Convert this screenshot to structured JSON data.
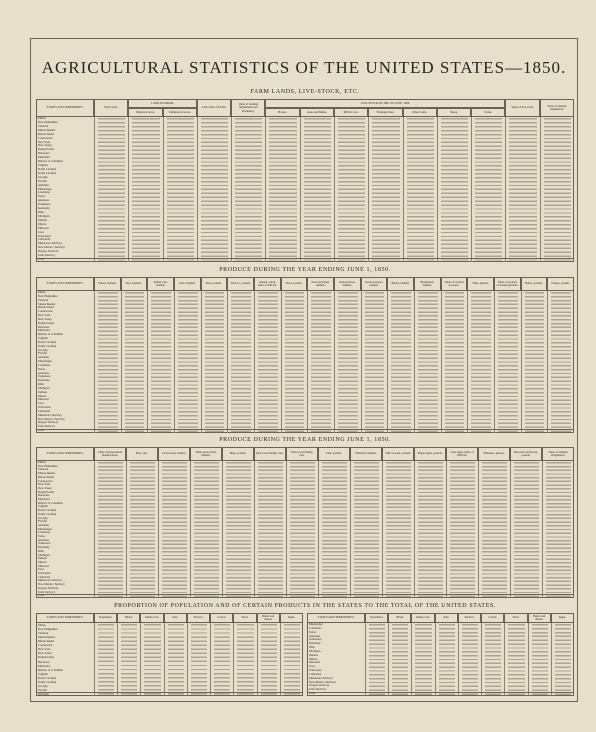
{
  "header": {
    "title": "AGRICULTURAL STATISTICS OF THE UNITED STATES—1850."
  },
  "states": [
    "Maine",
    "New Hampshire",
    "Vermont",
    "Massachusetts",
    "Rhode Island",
    "Connecticut",
    "New York",
    "New Jersey",
    "Pennsylvania",
    "Delaware",
    "Maryland",
    "District of Columbia",
    "Virginia",
    "North Carolina",
    "South Carolina",
    "Georgia",
    "Florida",
    "Alabama",
    "Mississippi",
    "Louisiana",
    "Texas",
    "Arkansas",
    "Tennessee",
    "Kentucky",
    "Ohio",
    "Michigan",
    "Indiana",
    "Illinois",
    "Missouri",
    "Iowa",
    "Wisconsin",
    "California",
    "Minnesota Territory",
    "New Mexico Territory",
    "Oregon Territory",
    "Utah Territory"
  ],
  "total": "Total",
  "first_column": "STATES AND TERRITORIES.",
  "tables": [
    {
      "heading": "FARM LANDS, LIVE-STOCK, ETC.",
      "columns": [
        "Farm acres.",
        "Improved acres.",
        "Unimproved acres.",
        "Cash value of Farms.",
        "Value of farming implements and machinery.",
        "Horses.",
        "Asses and Mules.",
        "Milch Cows.",
        "Working Oxen.",
        "Other Cattle.",
        "Sheep.",
        "Swine.",
        "Value of live-stock.",
        "Value of animals slaughtered."
      ],
      "groups": [
        {
          "label": "LAND IN FARMS.",
          "from": 1,
          "to": 2
        },
        {
          "label": "LIVE-STOCK ON THE 1ST JUNE, 1850.",
          "from": 5,
          "to": 11
        }
      ]
    },
    {
      "heading": "PRODUCE DURING THE YEAR ENDING JUNE 1, 1850.",
      "columns": [
        "Wheat, bushels.",
        "Rye, bushels.",
        "Indian corn, bushels.",
        "Oats, bushels.",
        "Rice, pounds.",
        "Tobacco, pounds.",
        "Ginned cotton, bales of 400 lbs.",
        "Wool, pounds.",
        "Peas and beans, bushels.",
        "Irish potatoes, bushels.",
        "Sweet potatoes, bushels.",
        "Barley, bushels.",
        "Buckwheat, bushels.",
        "Value of orchard products.",
        "Wine, gallons.",
        "Value of produce of market gardens.",
        "Butter, pounds.",
        "Cheese, pounds."
      ],
      "groups": []
    },
    {
      "heading": "PRODUCE DURING THE YEAR ENDING JUNE 1, 1850.",
      "columns": [
        "Value of home-made manufactures.",
        "Hay, tons.",
        "Clover seed, bushels.",
        "Other grass seeds, bushels.",
        "Hops, pounds.",
        "Dew-rotted hemp, tons.",
        "Water-rotted hemp, tons.",
        "Flax, pounds.",
        "Flaxseed, bushels.",
        "Silk cocoons, pounds.",
        "Maple sugar, pounds.",
        "Cane sugar, hhds. of 1000 lbs.",
        "Molasses, gallons.",
        "Beeswax and honey, pounds.",
        "Value of animals slaughtered."
      ],
      "groups": []
    }
  ],
  "proportion": {
    "heading": "PROPORTION OF POPULATION AND OF CERTAIN PRODUCTS IN THE STATES TO THE TOTAL OF THE UNITED STATES.",
    "columns": [
      "Population.",
      "Wheat.",
      "Indian corn.",
      "Oats.",
      "Tobacco.",
      "Cotton.",
      "Wool.",
      "Butter and cheese.",
      "Sugar."
    ]
  }
}
